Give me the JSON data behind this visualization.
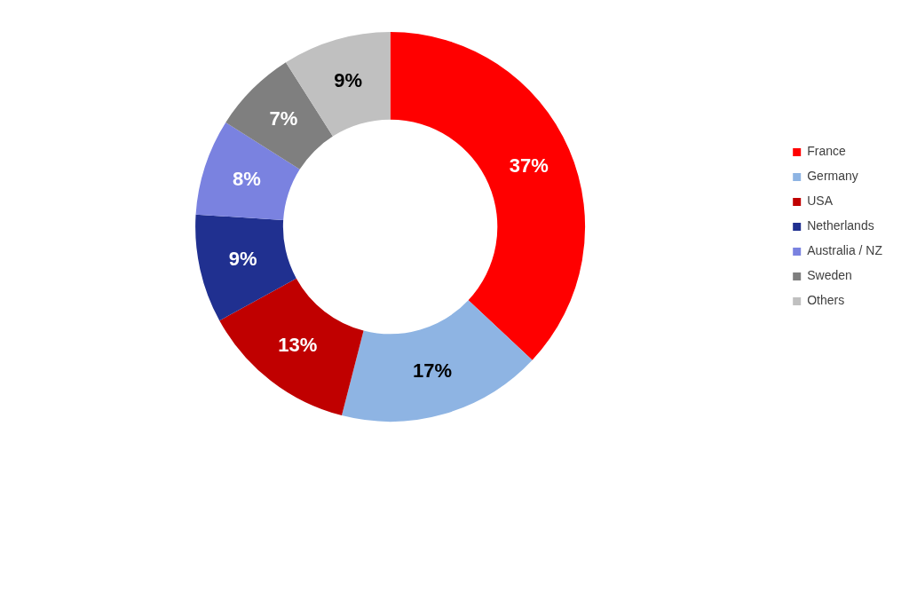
{
  "chart_data": {
    "type": "donut",
    "categories": [
      "France",
      "Germany",
      "USA",
      "Netherlands",
      "Australia / NZ",
      "Sweden",
      "Others"
    ],
    "values": [
      37,
      17,
      13,
      9,
      8,
      7,
      9
    ],
    "colors": [
      "#ff0000",
      "#8eb4e3",
      "#c00000",
      "#203090",
      "#7a82e0",
      "#7f7f7f",
      "#c0c0c0"
    ],
    "value_labels": [
      "37%",
      "17%",
      "13%",
      "9%",
      "8%",
      "7%",
      "9%"
    ],
    "legend": "right"
  }
}
